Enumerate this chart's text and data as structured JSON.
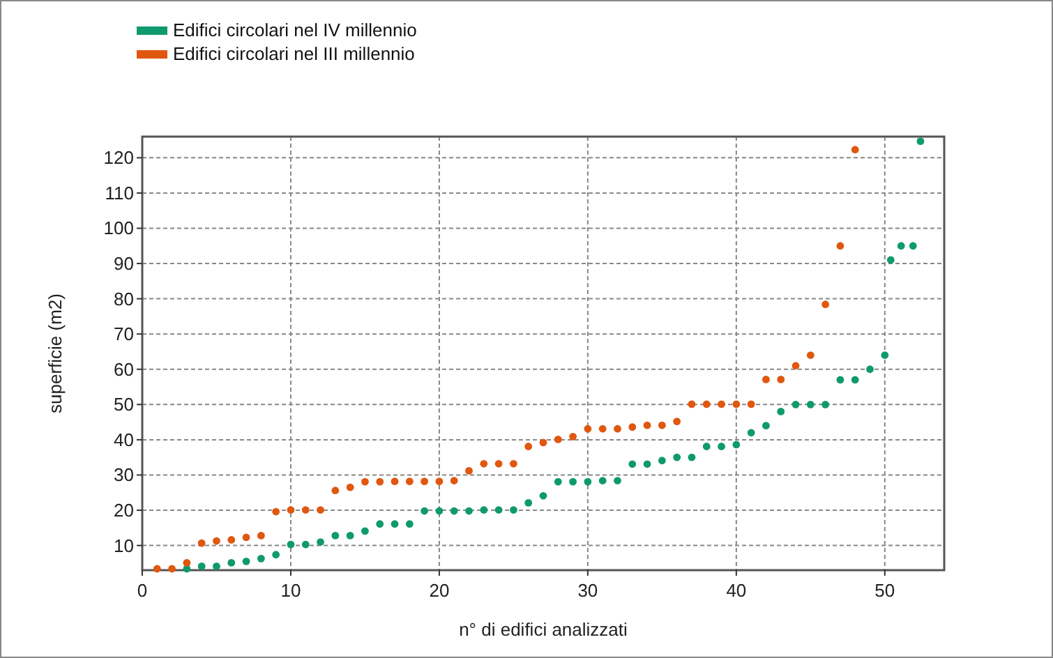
{
  "chart_data": {
    "type": "scatter",
    "xlabel": "n° di edifici analizzati",
    "ylabel": "superficie (m2)",
    "xlim": [
      0,
      54
    ],
    "ylim": [
      3,
      126
    ],
    "xticks": [
      0,
      10,
      20,
      30,
      40,
      50
    ],
    "yticks": [
      10,
      20,
      30,
      40,
      50,
      60,
      70,
      80,
      90,
      100,
      110,
      120
    ],
    "grid": true,
    "legend": "top left",
    "marker": "circle",
    "series": [
      {
        "name": "Edifici circolari nel IV millennio",
        "color": "#0f9a6e",
        "x": [
          3,
          4,
          5,
          6,
          7,
          8,
          9,
          10,
          11,
          12,
          13,
          14,
          15,
          16,
          17,
          18,
          19,
          20,
          21,
          22,
          23,
          24,
          25,
          26,
          27,
          28,
          29,
          30,
          31,
          32,
          33,
          34,
          35,
          36,
          37,
          38,
          39,
          40,
          41,
          42,
          43,
          44,
          45,
          46,
          47,
          48,
          49,
          50,
          50.4,
          51.1,
          51.9,
          52.4
        ],
        "values": [
          3.4,
          4.1,
          4.1,
          5.1,
          5.5,
          6.3,
          7.4,
          10.3,
          10.3,
          11,
          12.8,
          12.8,
          14.1,
          16.1,
          16.1,
          16.1,
          19.8,
          19.8,
          19.8,
          19.8,
          20.1,
          20.1,
          20.1,
          22.1,
          24.1,
          28.1,
          28.1,
          28.1,
          28.4,
          28.4,
          33.1,
          33.1,
          34.1,
          35,
          35,
          38.1,
          38.1,
          38.6,
          42,
          44,
          48,
          50,
          50,
          50,
          57,
          57,
          60,
          64,
          91,
          95,
          95,
          124.7
        ]
      },
      {
        "name": "Edifici circolari nel III millennio",
        "color": "#e0570f",
        "x": [
          1,
          2,
          3,
          4,
          5,
          6,
          7,
          8,
          9,
          10,
          11,
          12,
          13,
          14,
          15,
          16,
          17,
          18,
          19,
          20,
          21,
          22,
          23,
          24,
          25,
          26,
          27,
          28,
          29,
          30,
          31,
          32,
          33,
          34,
          35,
          36,
          37,
          38,
          39,
          40,
          41,
          42,
          43,
          44,
          45,
          46,
          47,
          48
        ],
        "values": [
          3.4,
          3.4,
          5.1,
          10.7,
          11.3,
          11.6,
          12.3,
          12.8,
          19.6,
          20.1,
          20.1,
          20.1,
          25.6,
          26.5,
          28.1,
          28.1,
          28.2,
          28.2,
          28.2,
          28.2,
          28.4,
          31.2,
          33.2,
          33.2,
          33.2,
          38.1,
          39.2,
          40.1,
          40.9,
          43.1,
          43.1,
          43.1,
          43.6,
          44.1,
          44.1,
          45.2,
          50.1,
          50.1,
          50.1,
          50.1,
          50.1,
          57.1,
          57.1,
          61,
          64,
          78.4,
          95,
          122.3
        ]
      }
    ]
  }
}
